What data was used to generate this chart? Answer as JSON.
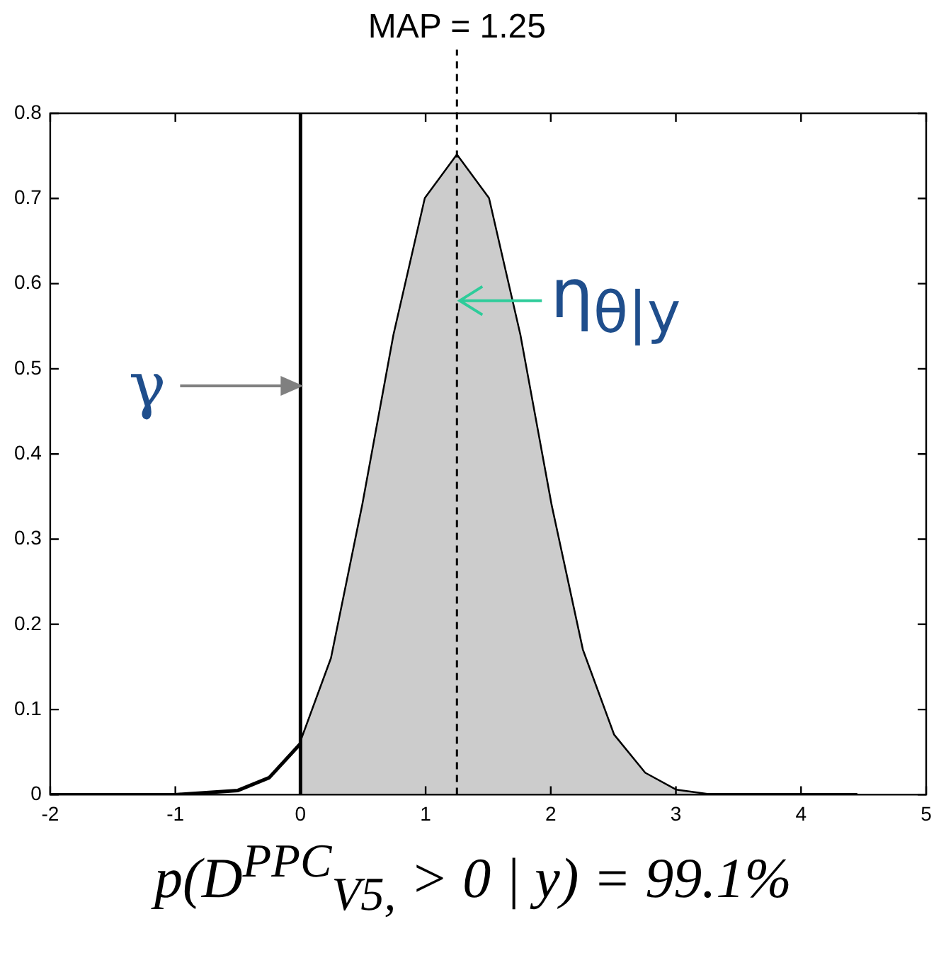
{
  "chart_data": {
    "type": "line",
    "x": [
      -2,
      -1,
      -0.5,
      -0.25,
      0,
      0.25,
      0.5,
      0.75,
      1,
      1.25,
      1.5,
      1.75,
      2,
      2.25,
      2.5,
      2.75,
      3,
      3.25,
      4.45
    ],
    "series": [
      {
        "type": "area",
        "color": "#cccccc",
        "x": [
          0,
          0.25,
          0.5,
          0.75,
          1,
          1.25,
          1.5,
          1.75,
          2,
          2.25,
          2.5,
          2.75,
          3,
          3.25,
          4.45
        ],
        "values": [
          0.06,
          0.16,
          0.34,
          0.54,
          0.7,
          0.75,
          0.7,
          0.54,
          0.34,
          0.17,
          0.07,
          0.025,
          0.005,
          0,
          0
        ]
      },
      {
        "color": "#000000",
        "values": [
          0,
          0,
          0.005,
          0.02,
          0.06,
          0.16,
          0.34,
          0.54,
          0.7,
          0.75,
          0.7,
          0.54,
          0.34,
          0.17,
          0.07,
          0.025,
          0.005,
          0,
          0
        ]
      }
    ],
    "xlim": [
      -2,
      5
    ],
    "xticks": [
      -2,
      -1,
      0,
      1,
      2,
      3,
      4,
      5
    ],
    "ylim": [
      0,
      0.8
    ],
    "yticks": [
      0,
      0.1,
      0.2,
      0.3,
      0.4,
      0.5,
      0.6,
      0.7,
      0.8
    ],
    "ref_lines": [
      {
        "axis": "x",
        "value": 0,
        "color": "#000000",
        "line_style": "solid"
      },
      {
        "axis": "x",
        "value": 1.25,
        "label": "MAP = 1.25",
        "color": "#000000",
        "line_style": "dashed"
      }
    ],
    "annotations": [
      {
        "text": "γ",
        "x": 0,
        "y": 0.48
      },
      {
        "text": "η$_{θ|y}$",
        "x": 1.25,
        "y": 0.58
      },
      "p(D$^{PPC}$$_{V5,}$ > 0 | y) = 99.1%"
    ],
    "grid": false,
    "legend": false,
    "marker": "none"
  }
}
